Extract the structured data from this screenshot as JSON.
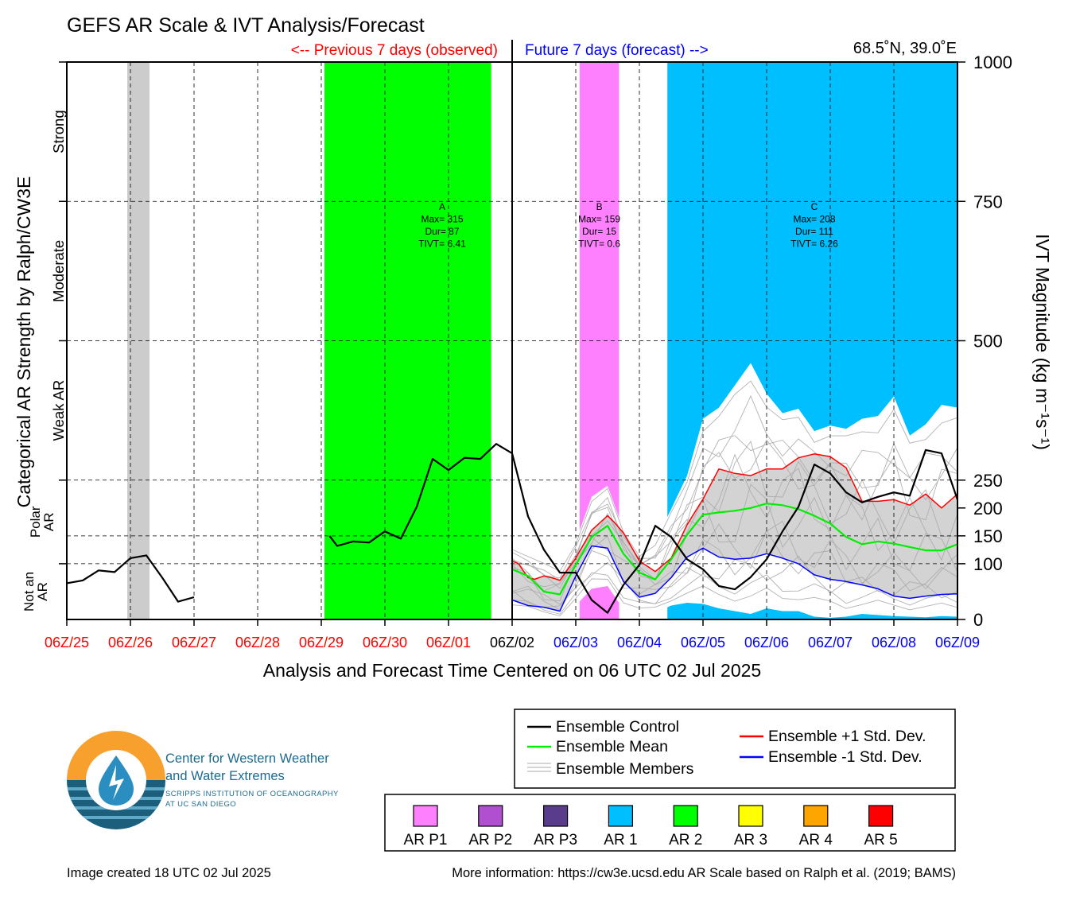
{
  "title": "GEFS AR Scale & IVT Analysis/Forecast",
  "header": {
    "previous_label": "<-- Previous 7 days (observed)",
    "future_label": "Future 7 days (forecast) -->",
    "location": "68.5˚N, 39.0˚E"
  },
  "colors": {
    "observed_text": "#ff0000",
    "forecast_text": "#0000ff",
    "grey_band": "#cccccc",
    "ar1": "#00bfff",
    "ar2": "#00ff00",
    "ar3": "#ffff00",
    "ar4": "#ffa500",
    "ar5": "#ff0000",
    "ar_p1": "#ff80ff",
    "ar_p2": "#b050d0",
    "ar_p3": "#5a3c8c",
    "control": "#000000",
    "mean": "#00ee00",
    "plus_std": "#ff0000",
    "minus_std": "#0000ff",
    "members": "#aaaaaa",
    "spread": "#d3d3d3"
  },
  "left_axis_title": "Categorical AR Strength by Ralph/CW3E",
  "categories": [
    {
      "label": "Strong"
    },
    {
      "label": "Moderate"
    },
    {
      "label": "Weak AR"
    },
    {
      "label": "Polar AR"
    },
    {
      "label": "Not an AR"
    }
  ],
  "right_axis_title": "IVT Magnitude (kg m⁻¹s⁻¹)",
  "x_axis_title": "Analysis and Forecast Time Centered on 06 UTC 02 Jul 2025",
  "chart_data": {
    "type": "line",
    "x": [
      "06Z/25",
      "06Z/26",
      "06Z/27",
      "06Z/28",
      "06Z/29",
      "06Z/30",
      "06Z/01",
      "06Z/02",
      "06Z/03",
      "06Z/04",
      "06Z/05",
      "06Z/06",
      "06Z/07",
      "06Z/08",
      "06Z/09"
    ],
    "x_range_days": [
      -7,
      7
    ],
    "ylim": [
      0,
      1000
    ],
    "yticks": [
      0,
      100,
      150,
      200,
      250,
      500,
      750,
      1000
    ],
    "category_thresholds": [
      100,
      150,
      250,
      500,
      750
    ],
    "shaded_periods": [
      {
        "start": -6.05,
        "end": -5.7,
        "color": "grey"
      },
      {
        "start": -2.95,
        "end": -0.33,
        "color": "ar2",
        "label": "A",
        "max": "Max= 315",
        "dur": "Dur= 87",
        "tivt": "TIVT= 6.41"
      },
      {
        "start": 1.06,
        "end": 1.68,
        "color": "ar_p1",
        "label": "B",
        "max": "Max= 159",
        "dur": "Dur= 15",
        "tivt": "TIVT= 0.6"
      },
      {
        "start": 2.44,
        "end": 7.0,
        "color": "ar1",
        "label": "C",
        "max": "Max= 208",
        "dur": "Dur= 111",
        "tivt": "TIVT= 6.26"
      }
    ],
    "series": [
      {
        "name": "Ensemble Control",
        "x": [
          -7,
          -6.75,
          -6.5,
          -6.25,
          -6,
          -5.75,
          -5.5,
          -5.25,
          -5,
          null,
          -2.87,
          -2.75,
          -2.5,
          -2.25,
          -2,
          -1.75,
          -1.5,
          -1.25,
          -1,
          -0.75,
          -0.5,
          -0.25,
          0,
          0.25,
          0.5,
          0.75,
          1,
          1.25,
          1.5,
          1.75,
          2,
          2.25,
          2.5,
          2.75,
          3,
          3.25,
          3.5,
          3.75,
          4,
          4.25,
          4.5,
          4.75,
          5,
          5.25,
          5.5,
          5.75,
          6,
          6.25,
          6.5,
          6.75,
          7
        ],
        "y": [
          65,
          70,
          88,
          85,
          110,
          115,
          75,
          32,
          40,
          null,
          150,
          132,
          140,
          138,
          158,
          145,
          202,
          288,
          268,
          290,
          288,
          315,
          298,
          185,
          125,
          84,
          84,
          35,
          12,
          62,
          98,
          168,
          148,
          108,
          90,
          60,
          54,
          76,
          108,
          158,
          202,
          278,
          262,
          228,
          210,
          220,
          228,
          222,
          304,
          298,
          215
        ]
      },
      {
        "name": "Ensemble +1 Std. Dev.",
        "x": [
          0,
          0.1,
          0.25,
          0.35,
          0.5,
          0.65,
          0.75,
          1,
          1.25,
          1.5,
          1.6,
          1.75,
          2,
          2.25,
          2.5,
          2.75,
          3,
          3.25,
          3.5,
          3.75,
          4,
          4.25,
          4.5,
          4.75,
          5,
          5.25,
          5.5,
          5.75,
          6,
          6.25,
          6.5,
          6.75,
          7
        ],
        "y": [
          105,
          100,
          75,
          72,
          78,
          74,
          70,
          110,
          160,
          186,
          175,
          155,
          105,
          86,
          110,
          170,
          216,
          270,
          262,
          258,
          270,
          270,
          290,
          297,
          292,
          272,
          212,
          212,
          215,
          205,
          225,
          200,
          225
        ]
      },
      {
        "name": "Ensemble Mean",
        "x": [
          0,
          0.25,
          0.5,
          0.75,
          1,
          1.25,
          1.5,
          1.75,
          2,
          2.25,
          2.5,
          2.75,
          3,
          3.25,
          3.5,
          3.75,
          4,
          4.25,
          4.5,
          4.75,
          5,
          5.25,
          5.5,
          5.75,
          6,
          6.25,
          6.5,
          6.75,
          7
        ],
        "y": [
          90,
          78,
          50,
          45,
          98,
          148,
          168,
          118,
          84,
          72,
          108,
          152,
          188,
          192,
          195,
          200,
          208,
          205,
          198,
          186,
          172,
          148,
          135,
          140,
          136,
          130,
          124,
          124,
          135
        ]
      },
      {
        "name": "Ensemble -1 Std. Dev.",
        "x": [
          0,
          0.25,
          0.5,
          0.75,
          1,
          1.25,
          1.5,
          1.75,
          2,
          2.25,
          2.5,
          2.75,
          3,
          3.25,
          3.5,
          3.75,
          4,
          4.25,
          4.5,
          4.75,
          5,
          5.25,
          5.5,
          5.75,
          6,
          6.25,
          6.5,
          6.75,
          7
        ],
        "y": [
          35,
          25,
          22,
          15,
          78,
          132,
          128,
          68,
          40,
          47,
          75,
          112,
          128,
          112,
          108,
          110,
          118,
          110,
          100,
          80,
          72,
          68,
          62,
          55,
          42,
          38,
          42,
          45,
          46
        ]
      },
      {
        "name": "Ensemble Members",
        "upper": {
          "x": [
            0,
            0.25,
            0.5,
            0.75,
            1,
            1.25,
            1.5,
            1.75,
            2,
            2.25,
            2.5,
            2.75,
            3,
            3.25,
            3.5,
            3.75,
            4,
            4.25,
            4.5,
            4.75,
            5,
            5.25,
            5.5,
            5.75,
            6,
            6.25,
            6.5,
            6.75,
            7
          ],
          "y": [
            130,
            118,
            105,
            90,
            140,
            220,
            240,
            160,
            118,
            140,
            198,
            258,
            360,
            380,
            420,
            460,
            405,
            370,
            378,
            338,
            348,
            342,
            360,
            365,
            400,
            330,
            350,
            385,
            380
          ]
        },
        "lower": {
          "x": [
            0,
            0.25,
            0.5,
            0.75,
            1,
            1.25,
            1.5,
            1.75,
            2,
            2.25,
            2.5,
            2.75,
            3,
            3.25,
            3.5,
            3.75,
            4,
            4.25,
            4.5,
            4.75,
            5,
            5.25,
            5.5,
            5.75,
            6,
            6.25,
            6.5,
            6.75,
            7
          ],
          "y": [
            15,
            10,
            8,
            2,
            25,
            55,
            60,
            18,
            5,
            12,
            25,
            30,
            28,
            20,
            15,
            10,
            20,
            15,
            15,
            5,
            3,
            5,
            10,
            8,
            6,
            5,
            4,
            6,
            5
          ]
        }
      }
    ]
  },
  "legend": {
    "items": [
      {
        "label": "Ensemble Control"
      },
      {
        "label": "Ensemble Mean"
      },
      {
        "label": "Ensemble Members"
      },
      {
        "label": "Ensemble +1 Std. Dev."
      },
      {
        "label": "Ensemble -1 Std. Dev."
      }
    ]
  },
  "scale_legend": [
    {
      "label": "AR P1"
    },
    {
      "label": "AR P2"
    },
    {
      "label": "AR P3"
    },
    {
      "label": "AR 1"
    },
    {
      "label": "AR 2"
    },
    {
      "label": "AR 3"
    },
    {
      "label": "AR 4"
    },
    {
      "label": "AR 5"
    }
  ],
  "logo": {
    "line1": "Center for Western Weather",
    "line2": "and Water Extremes",
    "line3": "SCRIPPS INSTITUTION OF OCEANOGRAPHY",
    "line4": "AT UC SAN DIEGO"
  },
  "footer": {
    "created": "Image created 18 UTC 02 Jul 2025",
    "more_info": "More information: https://cw3e.ucsd.edu AR Scale based on Ralph et al. (2019; BAMS)"
  }
}
